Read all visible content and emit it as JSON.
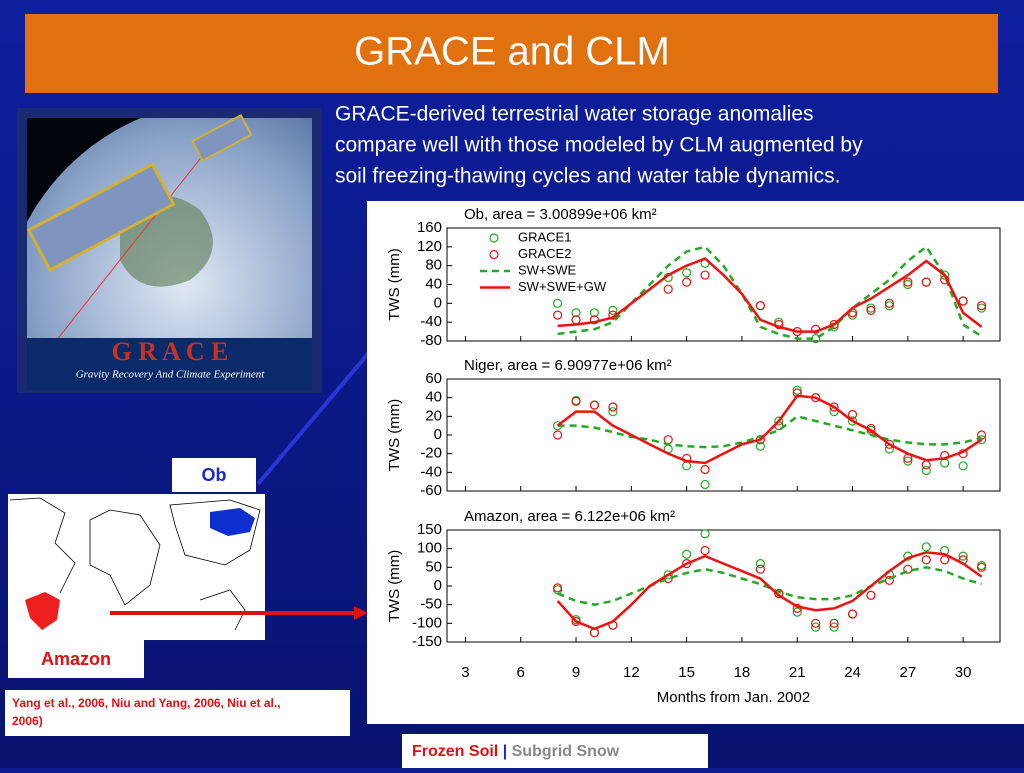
{
  "slide": {
    "title": "GRACE and CLM",
    "paragraph": [
      "GRACE-derived terrestrial water storage anomalies",
      "compare well with those modeled by CLM augmented by",
      "soil freezing-thawing cycles and water table dynamics."
    ],
    "logo": "G R A C E",
    "logo_caption": "Gravity Recovery And Climate Experiment",
    "map_labels": {
      "ob": "Ob",
      "amazon": "Amazon"
    },
    "citation": [
      "Yang et al., 2006, Niu and Yang, 2006, Niu et al.,",
      "2006)"
    ],
    "footer": {
      "active": "Frozen Soil",
      "separator": "|",
      "other": "Subgrid Snow"
    }
  },
  "chart_data": [
    {
      "type": "line",
      "title": "Ob, area = 3.00899e+06 km²",
      "ylabel": "TWS (mm)",
      "legend": "upper left",
      "xlim": [
        2,
        32
      ],
      "ylim": [
        -80,
        160
      ],
      "yticks": [
        -80,
        -40,
        0,
        40,
        80,
        120,
        160
      ],
      "x": [
        8,
        9,
        10,
        11,
        12,
        13,
        14,
        15,
        16,
        17,
        18,
        19,
        20,
        21,
        22,
        23,
        24,
        25,
        26,
        27,
        28,
        29,
        30,
        31
      ],
      "series": [
        {
          "name": "GRACE1",
          "color": "#22aa22",
          "marker": "o",
          "values": [
            0,
            -20,
            -20,
            -15,
            null,
            null,
            55,
            65,
            85,
            null,
            null,
            -5,
            -40,
            -60,
            -75,
            -50,
            -25,
            -10,
            -5,
            40,
            45,
            60,
            5,
            -10
          ]
        },
        {
          "name": "GRACE2",
          "color": "#ee1111",
          "marker": "o",
          "values": [
            -25,
            -35,
            -35,
            -25,
            null,
            null,
            30,
            45,
            60,
            null,
            null,
            -5,
            -45,
            -60,
            -55,
            -45,
            -20,
            -15,
            0,
            45,
            45,
            50,
            5,
            -5
          ]
        },
        {
          "name": "SW+SWE",
          "color": "#22aa22",
          "linestyle": "dashed",
          "values": [
            -65,
            -60,
            -55,
            -40,
            0,
            40,
            80,
            110,
            120,
            80,
            20,
            -50,
            -65,
            -75,
            -75,
            -50,
            -10,
            20,
            50,
            90,
            120,
            60,
            -45,
            -70
          ]
        },
        {
          "name": "SW+SWE+GW",
          "color": "#ee1111",
          "linestyle": "solid",
          "values": [
            -48,
            -45,
            -40,
            -30,
            0,
            30,
            60,
            80,
            95,
            60,
            20,
            -35,
            -50,
            -60,
            -60,
            -45,
            -10,
            10,
            35,
            60,
            90,
            60,
            -20,
            -50
          ]
        }
      ]
    },
    {
      "type": "line",
      "title": "Niger, area = 6.90977e+06 km²",
      "ylabel": "TWS (mm)",
      "xlim": [
        2,
        32
      ],
      "ylim": [
        -60,
        60
      ],
      "yticks": [
        -60,
        -40,
        -20,
        0,
        20,
        40,
        60
      ],
      "x": [
        8,
        9,
        10,
        11,
        12,
        13,
        14,
        15,
        16,
        17,
        18,
        19,
        20,
        21,
        22,
        23,
        24,
        25,
        26,
        27,
        28,
        29,
        30,
        31
      ],
      "series": [
        {
          "color": "#22aa22",
          "marker": "o",
          "values": [
            10,
            37,
            32,
            25,
            null,
            null,
            -15,
            -33,
            -53,
            null,
            null,
            -12,
            15,
            48,
            40,
            25,
            15,
            5,
            -15,
            -28,
            -38,
            -30,
            -33,
            -5
          ]
        },
        {
          "color": "#ee1111",
          "marker": "o",
          "values": [
            0,
            36,
            32,
            30,
            null,
            null,
            -5,
            -25,
            -37,
            null,
            null,
            -5,
            10,
            45,
            40,
            30,
            22,
            7,
            -10,
            -25,
            -32,
            -22,
            -20,
            0
          ]
        },
        {
          "color": "#22aa22",
          "linestyle": "dashed",
          "values": [
            10,
            10,
            8,
            3,
            -2,
            -5,
            -10,
            -12,
            -13,
            -12,
            -8,
            -2,
            5,
            20,
            15,
            10,
            5,
            0,
            -5,
            -8,
            -10,
            -10,
            -8,
            -3
          ]
        },
        {
          "color": "#ee1111",
          "linestyle": "solid",
          "values": [
            10,
            25,
            25,
            10,
            0,
            -10,
            -20,
            -28,
            -30,
            -20,
            -10,
            -5,
            15,
            42,
            40,
            30,
            15,
            5,
            -10,
            -20,
            -27,
            -25,
            -18,
            -5
          ]
        }
      ]
    },
    {
      "type": "line",
      "title": "Amazon, area = 6.122e+06 km²",
      "ylabel": "TWS (mm)",
      "xlabel": "Months from Jan. 2002",
      "xlim": [
        2,
        32
      ],
      "xticks": [
        3,
        6,
        9,
        12,
        15,
        18,
        21,
        24,
        27,
        30
      ],
      "ylim": [
        -150,
        150
      ],
      "yticks": [
        -150,
        -100,
        -50,
        0,
        50,
        100,
        150
      ],
      "x": [
        8,
        9,
        10,
        11,
        12,
        13,
        14,
        15,
        16,
        17,
        18,
        19,
        20,
        21,
        22,
        23,
        24,
        25,
        26,
        27,
        28,
        29,
        30,
        31
      ],
      "series": [
        {
          "color": "#22aa22",
          "marker": "o",
          "values": [
            -10,
            -90,
            -125,
            -105,
            null,
            null,
            30,
            85,
            140,
            null,
            null,
            60,
            -20,
            -70,
            -110,
            -110,
            -75,
            -25,
            30,
            80,
            105,
            95,
            80,
            55
          ]
        },
        {
          "color": "#ee1111",
          "marker": "o",
          "values": [
            -5,
            -95,
            -125,
            -105,
            null,
            null,
            20,
            60,
            95,
            null,
            null,
            45,
            -20,
            -60,
            -100,
            -100,
            -75,
            -25,
            15,
            45,
            70,
            70,
            70,
            50
          ]
        },
        {
          "color": "#22aa22",
          "linestyle": "dashed",
          "values": [
            -20,
            -40,
            -50,
            -40,
            -20,
            0,
            20,
            35,
            45,
            35,
            20,
            5,
            -15,
            -30,
            -35,
            -35,
            -25,
            0,
            20,
            40,
            50,
            40,
            20,
            5
          ]
        },
        {
          "color": "#ee1111",
          "linestyle": "solid",
          "values": [
            -40,
            -95,
            -115,
            -95,
            -50,
            0,
            30,
            60,
            80,
            60,
            40,
            20,
            -25,
            -55,
            -65,
            -60,
            -40,
            0,
            40,
            75,
            90,
            85,
            60,
            25
          ]
        }
      ]
    }
  ]
}
